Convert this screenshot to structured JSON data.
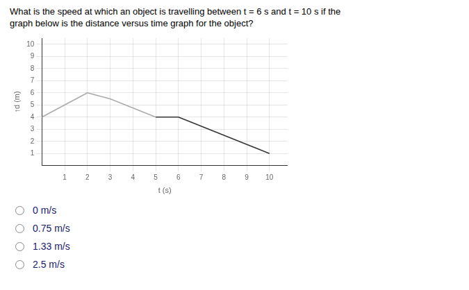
{
  "chart_data": {
    "type": "line",
    "title": [
      "What is the speed at which an object is travelling between t = 6 s and t = 10 s if the",
      "graph below is the distance versus time graph for the object?"
    ],
    "xlabel": "t (s)",
    "ylabel": "↑d (m)",
    "series": [
      {
        "x": [
          0,
          1,
          2
        ],
        "values": [
          4,
          5,
          6
        ],
        "color": "#aaaaaa"
      },
      {
        "x": [
          2,
          3,
          5
        ],
        "values": [
          6,
          5.5,
          4
        ],
        "color": "#aaaaaa"
      },
      {
        "x": [
          5,
          6
        ],
        "values": [
          4,
          4
        ],
        "color": "#333333"
      },
      {
        "x": [
          6,
          10
        ],
        "values": [
          4,
          1
        ],
        "color": "#333333"
      }
    ],
    "xlim": [
      0,
      10.8
    ],
    "ylim": [
      0,
      10.5
    ],
    "xticks": [
      1,
      2,
      3,
      4,
      5,
      6,
      7,
      8,
      9,
      10
    ],
    "yticks": [
      1,
      2,
      3,
      4,
      5,
      6,
      7,
      8,
      9,
      10
    ],
    "grid": true,
    "annotations": [
      "0 m/s",
      "0.75 m/s",
      "1.33 m/s",
      "2.5 m/s"
    ]
  }
}
